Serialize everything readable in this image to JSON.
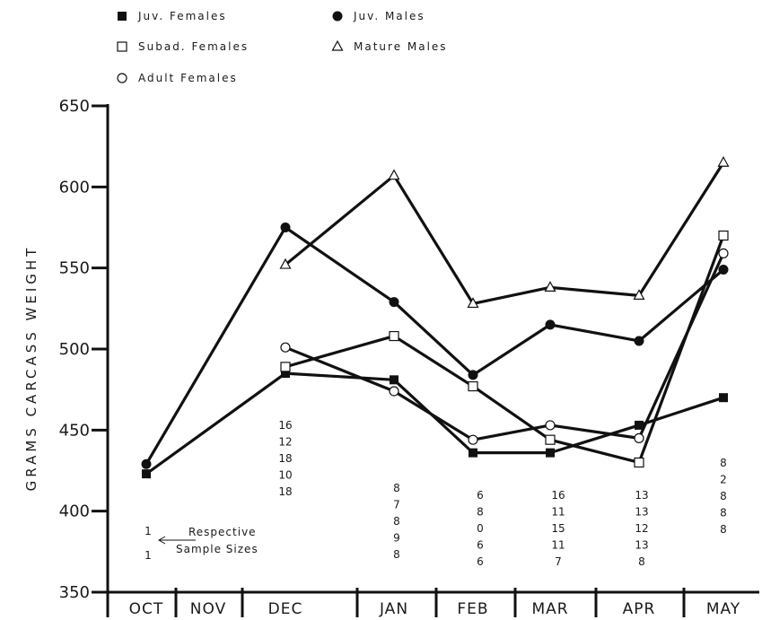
{
  "chart_data": {
    "type": "line",
    "title": "",
    "xlabel": "",
    "ylabel": "GRAMS CARCASS WEIGHT",
    "ylim": [
      350,
      650
    ],
    "yticks": [
      350,
      400,
      450,
      500,
      550,
      600,
      650
    ],
    "categories": [
      "OCT",
      "NOV",
      "DEC",
      "JAN",
      "FEB",
      "MAR",
      "APR",
      "MAY"
    ],
    "grid": false,
    "legend_placement": "top-left",
    "series": [
      {
        "name": "Juv. Females",
        "marker": "filled-square",
        "values": [
          423,
          null,
          485,
          481,
          436,
          436,
          453,
          470
        ]
      },
      {
        "name": "Juv. Males",
        "marker": "filled-circle",
        "values": [
          429,
          null,
          575,
          529,
          484,
          515,
          505,
          549
        ]
      },
      {
        "name": "Subad. Females",
        "marker": "open-square",
        "values": [
          null,
          null,
          489,
          508,
          477,
          444,
          430,
          570
        ]
      },
      {
        "name": "Mature Males",
        "marker": "open-triangle",
        "values": [
          null,
          null,
          552,
          607,
          528,
          538,
          533,
          615
        ]
      },
      {
        "name": "Adult Females",
        "marker": "open-circle",
        "values": [
          null,
          null,
          501,
          474,
          444,
          453,
          445,
          559
        ]
      }
    ],
    "sample_sizes": [
      {
        "month": "OCT",
        "values": [
          "1",
          "1"
        ]
      },
      {
        "month": "DEC",
        "values": [
          "16",
          "12",
          "18",
          "10",
          "18"
        ]
      },
      {
        "month": "JAN",
        "values": [
          "8",
          "7",
          "8",
          "9",
          "8"
        ]
      },
      {
        "month": "FEB",
        "values": [
          "6",
          "8",
          "0",
          "6",
          "6"
        ]
      },
      {
        "month": "MAR",
        "values": [
          "16",
          "11",
          "15",
          "11",
          "7"
        ]
      },
      {
        "month": "APR",
        "values": [
          "13",
          "13",
          "12",
          "13",
          "8"
        ]
      },
      {
        "month": "MAY",
        "values": [
          "8",
          "2",
          "8",
          "8",
          "8"
        ]
      }
    ],
    "annotation": [
      "Respective",
      "Sample Sizes"
    ]
  }
}
